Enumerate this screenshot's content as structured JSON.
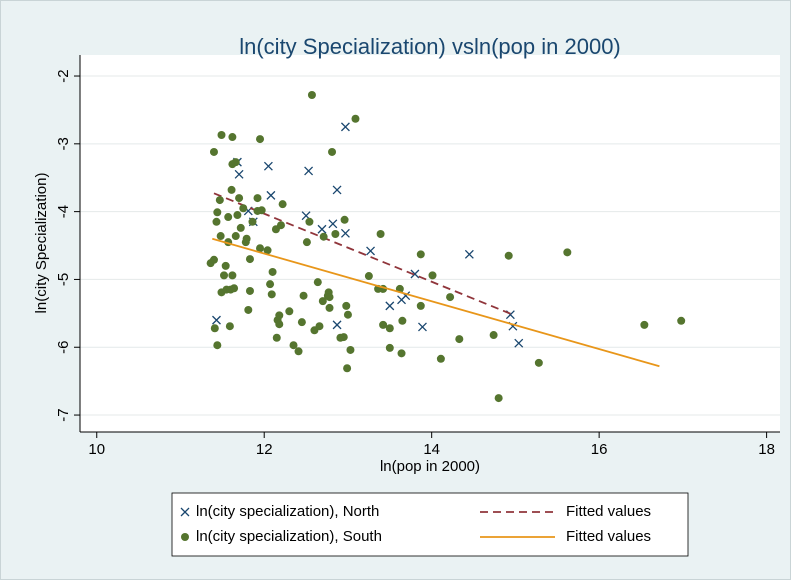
{
  "chart_data": {
    "type": "scatter",
    "title": "ln(city Specialization) vsln(pop in 2000)",
    "x_label": "ln(pop in 2000)",
    "y_label": "ln(city Specialization)",
    "xlim": [
      9.8,
      18.16
    ],
    "xticks": [
      10,
      12,
      14,
      16,
      18
    ],
    "ylim": [
      -7.25,
      -1.69
    ],
    "yticks": [
      -2,
      -3,
      -4,
      -5,
      -6,
      -7
    ],
    "grid": true,
    "legend": "bottom",
    "series": [
      {
        "name": "ln(city specialization), North",
        "type": "scatter",
        "marker": "x",
        "color": "#1a476f",
        "x": [
          11.43,
          11.68,
          11.7,
          11.81,
          11.87,
          12.05,
          12.08,
          12.53,
          12.5,
          12.69,
          12.82,
          12.87,
          12.87,
          12.97,
          12.97,
          13.27,
          13.5,
          13.64,
          13.69,
          13.8,
          13.89,
          14.45,
          14.94,
          14.97,
          15.04
        ],
        "values": [
          -5.6,
          -3.27,
          -3.45,
          -3.99,
          -4.15,
          -3.33,
          -3.76,
          -3.4,
          -4.06,
          -4.26,
          -4.18,
          -3.68,
          -5.67,
          -2.75,
          -4.32,
          -4.58,
          -5.39,
          -5.3,
          -5.24,
          -4.92,
          -5.7,
          -4.63,
          -5.52,
          -5.69,
          -5.94
        ]
      },
      {
        "name": "Fitted values",
        "type": "line",
        "dash": true,
        "color": "#90353b",
        "x": [
          11.4,
          14.97
        ],
        "values": [
          -3.73,
          -5.52
        ]
      },
      {
        "name": "ln(city specialization), South",
        "type": "scatter",
        "marker": "circle",
        "color": "#55752f",
        "x": [
          11.4,
          11.36,
          11.4,
          11.43,
          11.44,
          11.47,
          11.49,
          11.48,
          11.44,
          11.41,
          11.49,
          11.52,
          11.54,
          11.55,
          11.57,
          11.57,
          11.59,
          11.6,
          11.62,
          11.62,
          11.61,
          11.62,
          11.66,
          11.66,
          11.64,
          11.68,
          11.7,
          11.72,
          11.75,
          11.78,
          11.79,
          11.81,
          11.83,
          11.83,
          11.86,
          11.92,
          11.92,
          11.95,
          11.95,
          11.97,
          12.04,
          12.07,
          12.1,
          12.09,
          12.14,
          12.15,
          12.16,
          12.18,
          12.18,
          12.2,
          12.22,
          12.3,
          12.35,
          12.41,
          12.45,
          12.47,
          12.51,
          12.54,
          12.57,
          12.6,
          12.64,
          12.66,
          12.7,
          12.71,
          12.76,
          12.77,
          12.78,
          12.78,
          12.81,
          12.85,
          12.91,
          12.95,
          12.96,
          12.98,
          13.0,
          12.99,
          13.03,
          13.09,
          13.25,
          13.36,
          13.39,
          13.42,
          13.42,
          13.5,
          13.5,
          13.62,
          13.64,
          13.65,
          13.87,
          13.87,
          14.01,
          14.11,
          14.22,
          14.33,
          14.74,
          14.8,
          14.92,
          15.28,
          15.62,
          16.54,
          16.98
        ],
        "values": [
          -3.12,
          -4.76,
          -4.71,
          -4.15,
          -4.01,
          -3.83,
          -2.87,
          -4.36,
          -5.97,
          -5.72,
          -5.19,
          -4.94,
          -4.8,
          -5.15,
          -4.45,
          -4.08,
          -5.69,
          -5.15,
          -2.9,
          -4.94,
          -3.68,
          -3.3,
          -3.27,
          -4.36,
          -5.13,
          -4.05,
          -3.8,
          -4.24,
          -3.95,
          -4.45,
          -4.4,
          -5.45,
          -5.17,
          -4.7,
          -4.15,
          -3.8,
          -3.99,
          -4.54,
          -2.93,
          -3.98,
          -4.57,
          -5.07,
          -4.89,
          -5.22,
          -4.26,
          -5.86,
          -5.6,
          -5.53,
          -5.66,
          -4.2,
          -3.89,
          -5.47,
          -5.97,
          -6.06,
          -5.63,
          -5.24,
          -4.45,
          -4.15,
          -2.28,
          -5.75,
          -5.04,
          -5.69,
          -5.32,
          -4.37,
          -5.24,
          -5.19,
          -5.26,
          -5.42,
          -3.12,
          -4.33,
          -5.86,
          -5.85,
          -4.12,
          -5.39,
          -5.52,
          -6.31,
          -6.04,
          -2.63,
          -4.95,
          -5.14,
          -4.33,
          -5.14,
          -5.67,
          -6.01,
          -5.72,
          -5.14,
          -6.09,
          -5.61,
          -4.63,
          -5.39,
          -4.94,
          -6.17,
          -5.26,
          -5.88,
          -5.82,
          -6.75,
          -4.65,
          -6.23,
          -4.6,
          -5.67,
          -5.61
        ]
      },
      {
        "name": "Fitted values",
        "type": "line",
        "dash": false,
        "color": "#e8961a",
        "x": [
          11.38,
          16.72
        ],
        "values": [
          -4.4,
          -6.28
        ]
      }
    ]
  }
}
